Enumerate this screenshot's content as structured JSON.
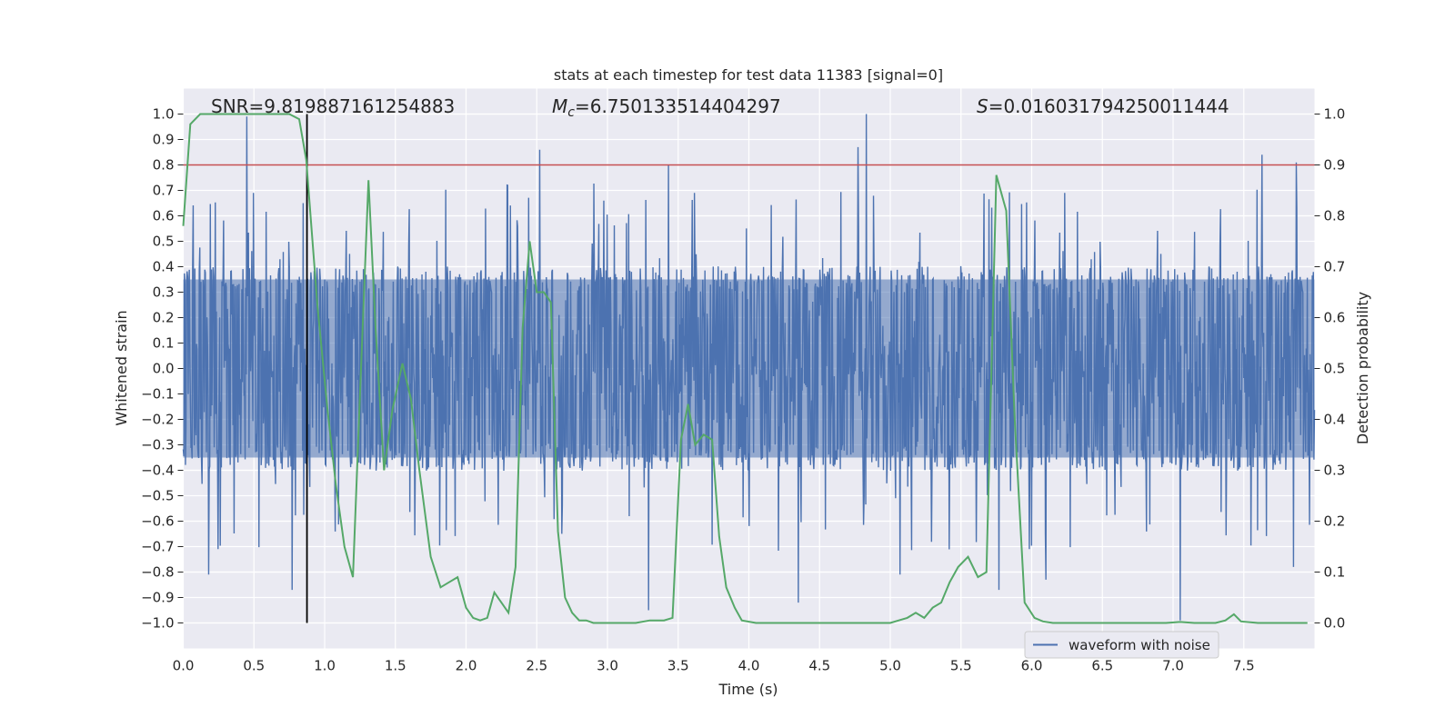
{
  "chart_data": {
    "type": "line",
    "title": "stats at each timestep for test data 11383 [signal=0]",
    "xlabel": "Time (s)",
    "ylabel_left": "Whitened strain",
    "ylabel_right": "Detection probability",
    "xlim": [
      0.0,
      8.0
    ],
    "ylim_left": [
      -1.1,
      1.1
    ],
    "ylim_right": [
      -0.05,
      1.05
    ],
    "x_ticks": [
      0.0,
      0.5,
      1.0,
      1.5,
      2.0,
      2.5,
      3.0,
      3.5,
      4.0,
      4.5,
      5.0,
      5.5,
      6.0,
      6.5,
      7.0,
      7.5
    ],
    "x_tick_labels": [
      "0.0",
      "0.5",
      "1.0",
      "1.5",
      "2.0",
      "2.5",
      "3.0",
      "3.5",
      "4.0",
      "4.5",
      "5.0",
      "5.5",
      "6.0",
      "6.5",
      "7.0",
      "7.5"
    ],
    "y_left_ticks": [
      -1.0,
      -0.9,
      -0.8,
      -0.7,
      -0.6,
      -0.5,
      -0.4,
      -0.3,
      -0.2,
      -0.1,
      0.0,
      0.1,
      0.2,
      0.3,
      0.4,
      0.5,
      0.6,
      0.7,
      0.8,
      0.9,
      1.0
    ],
    "y_left_tick_labels": [
      "−1.0",
      "−0.9",
      "−0.8",
      "−0.7",
      "−0.6",
      "−0.5",
      "−0.4",
      "−0.3",
      "−0.2",
      "−0.1",
      "0.0",
      "0.1",
      "0.2",
      "0.3",
      "0.4",
      "0.5",
      "0.6",
      "0.7",
      "0.8",
      "0.9",
      "1.0"
    ],
    "y_right_ticks": [
      0.0,
      0.1,
      0.2,
      0.3,
      0.4,
      0.5,
      0.6,
      0.7,
      0.8,
      0.9,
      1.0
    ],
    "y_right_tick_labels": [
      "0.0",
      "0.1",
      "0.2",
      "0.3",
      "0.4",
      "0.5",
      "0.6",
      "0.7",
      "0.8",
      "0.9",
      "1.0"
    ],
    "grid": true,
    "legend": {
      "location": "bottom-center-right",
      "entries": [
        "waveform with noise"
      ]
    },
    "annotations": {
      "snr_text": "SNR=9.819887161254883",
      "mc_prefix": "M",
      "mc_sub": "c",
      "mc_value": "=6.750133514404297",
      "s_prefix": "S",
      "s_value": "=0.016031794250011444"
    },
    "threshold": {
      "axis": "right",
      "value": 0.9,
      "color": "#c44e52"
    },
    "marker_line": {
      "x": 0.875,
      "y_from": -1.0,
      "y_to": 1.0,
      "color": "#000000"
    },
    "waveform": {
      "name": "waveform with noise",
      "color": "#4c72b0",
      "sample_count": 2048,
      "core_amplitude": 0.35,
      "peaks": [
        {
          "x": 0.45,
          "y": 0.99
        },
        {
          "x": 0.18,
          "y": -0.81
        },
        {
          "x": 0.77,
          "y": -0.87
        },
        {
          "x": 0.85,
          "y": 0.65
        },
        {
          "x": 2.52,
          "y": 0.86
        },
        {
          "x": 3.29,
          "y": -0.95
        },
        {
          "x": 3.43,
          "y": 0.8
        },
        {
          "x": 4.35,
          "y": -0.92
        },
        {
          "x": 4.77,
          "y": 0.87
        },
        {
          "x": 4.83,
          "y": 1.0
        },
        {
          "x": 5.07,
          "y": -0.81
        },
        {
          "x": 5.77,
          "y": -0.87
        },
        {
          "x": 6.1,
          "y": -0.83
        },
        {
          "x": 7.05,
          "y": -0.99
        },
        {
          "x": 7.63,
          "y": 0.84
        },
        {
          "x": 7.87,
          "y": 0.81
        },
        {
          "x": 7.85,
          "y": -0.78
        }
      ]
    },
    "detection": {
      "color": "#55a868",
      "x": [
        0.0,
        0.05,
        0.12,
        0.2,
        0.3,
        0.4,
        0.5,
        0.6,
        0.7,
        0.75,
        0.82,
        0.87,
        0.95,
        1.02,
        1.08,
        1.14,
        1.2,
        1.25,
        1.31,
        1.36,
        1.42,
        1.48,
        1.55,
        1.61,
        1.67,
        1.75,
        1.82,
        1.88,
        1.94,
        2.0,
        2.05,
        2.1,
        2.15,
        2.2,
        2.25,
        2.3,
        2.35,
        2.4,
        2.45,
        2.5,
        2.55,
        2.6,
        2.65,
        2.7,
        2.75,
        2.8,
        2.85,
        2.9,
        2.95,
        3.0,
        3.1,
        3.2,
        3.3,
        3.4,
        3.46,
        3.52,
        3.57,
        3.62,
        3.68,
        3.74,
        3.79,
        3.84,
        3.9,
        3.95,
        4.05,
        4.2,
        4.5,
        4.8,
        4.88,
        4.95,
        5.0,
        5.06,
        5.12,
        5.18,
        5.24,
        5.3,
        5.36,
        5.42,
        5.48,
        5.55,
        5.62,
        5.68,
        5.75,
        5.82,
        5.88,
        5.95,
        6.02,
        6.08,
        6.15,
        6.25,
        6.5,
        6.8,
        6.95,
        7.05,
        7.15,
        7.3,
        7.37,
        7.43,
        7.48,
        7.6,
        7.8,
        7.95
      ],
      "values": [
        0.78,
        0.98,
        1.0,
        1.0,
        1.0,
        1.0,
        1.0,
        1.0,
        1.0,
        1.0,
        0.99,
        0.91,
        0.62,
        0.42,
        0.27,
        0.15,
        0.09,
        0.45,
        0.87,
        0.58,
        0.3,
        0.42,
        0.51,
        0.44,
        0.3,
        0.13,
        0.07,
        0.08,
        0.09,
        0.03,
        0.01,
        0.005,
        0.01,
        0.06,
        0.04,
        0.02,
        0.11,
        0.58,
        0.75,
        0.65,
        0.65,
        0.63,
        0.18,
        0.05,
        0.02,
        0.005,
        0.005,
        0.0,
        0.0,
        0.0,
        0.0,
        0.0,
        0.005,
        0.005,
        0.01,
        0.36,
        0.43,
        0.35,
        0.37,
        0.36,
        0.17,
        0.07,
        0.03,
        0.005,
        0.0,
        0.0,
        0.0,
        0.0,
        0.0,
        0.0,
        0.0,
        0.005,
        0.01,
        0.02,
        0.01,
        0.03,
        0.04,
        0.08,
        0.11,
        0.13,
        0.09,
        0.1,
        0.88,
        0.81,
        0.4,
        0.04,
        0.01,
        0.003,
        0.0,
        0.0,
        0.0,
        0.0,
        0.0,
        0.002,
        0.0,
        0.0,
        0.005,
        0.017,
        0.003,
        0.0,
        0.0,
        0.0
      ]
    }
  }
}
